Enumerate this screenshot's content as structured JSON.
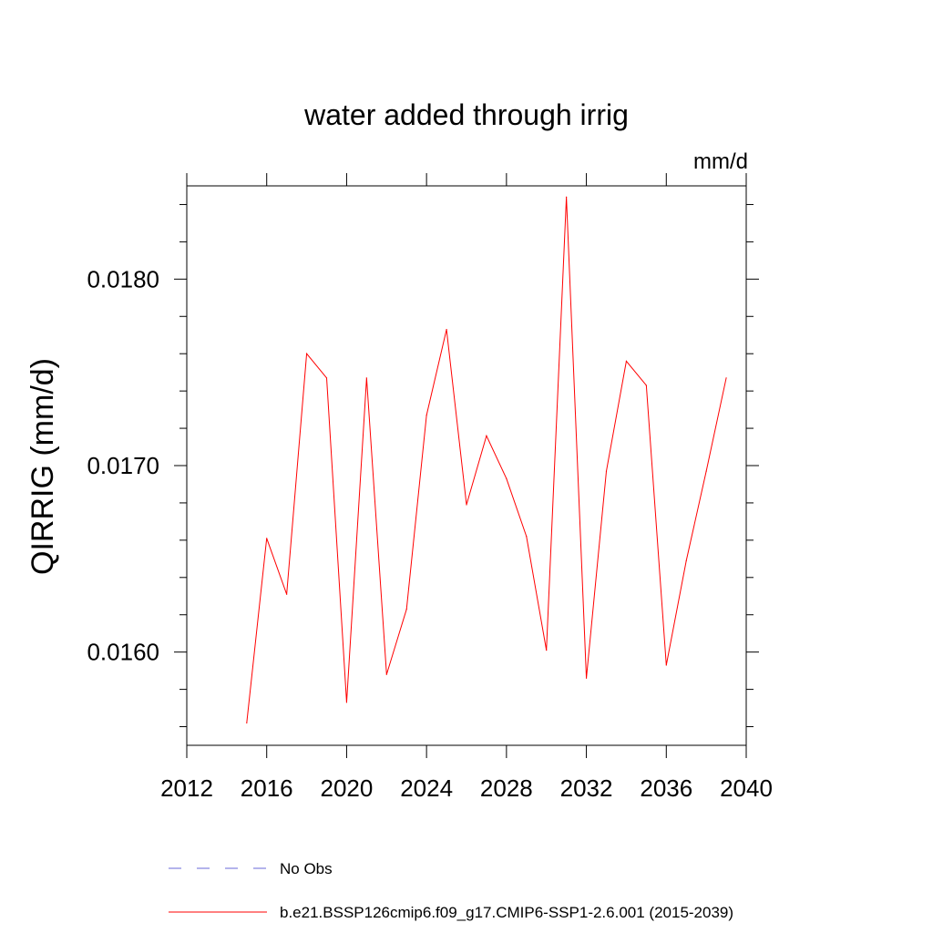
{
  "chart_data": {
    "type": "line",
    "title": "water added through irrig",
    "units": "mm/d",
    "xlabel": "",
    "ylabel": "QIRRIG  (mm/d)",
    "xlim": [
      2012,
      2040
    ],
    "ylim": [
      0.0155,
      0.0185
    ],
    "xticks": [
      2012,
      2016,
      2020,
      2024,
      2028,
      2032,
      2036,
      2040
    ],
    "xtick_labels": [
      "2012",
      "2016",
      "2020",
      "2024",
      "2028",
      "2032",
      "2036",
      "2040"
    ],
    "yticks": [
      0.016,
      0.017,
      0.018
    ],
    "ytick_labels": [
      "0.0160",
      "0.0170",
      "0.0180"
    ],
    "grid": false,
    "series": [
      {
        "name": "b.e21.BSSP126cmip6.f09_g17.CMIP6-SSP1-2.6.001 (2015-2039)",
        "color": "#ff0000",
        "x": [
          2015,
          2016,
          2017,
          2018,
          2019,
          2020,
          2021,
          2022,
          2023,
          2024,
          2025,
          2026,
          2027,
          2028,
          2029,
          2030,
          2031,
          2032,
          2033,
          2034,
          2035,
          2036,
          2037,
          2038,
          2039
        ],
        "values": [
          0.01562,
          0.01661,
          0.01631,
          0.0176,
          0.01747,
          0.01573,
          0.01747,
          0.01588,
          0.01623,
          0.01727,
          0.01773,
          0.01679,
          0.01716,
          0.01693,
          0.01662,
          0.01601,
          0.01844,
          0.01586,
          0.01697,
          0.01756,
          0.01743,
          0.01593,
          0.01649,
          0.01697,
          0.01747
        ]
      }
    ],
    "legend": [
      {
        "label": "No Obs",
        "style": "dashed",
        "color": "#6a6ad8"
      },
      {
        "label": "b.e21.BSSP126cmip6.f09_g17.CMIP6-SSP1-2.6.001 (2015-2039)",
        "style": "solid",
        "color": "#ff0000"
      }
    ]
  }
}
